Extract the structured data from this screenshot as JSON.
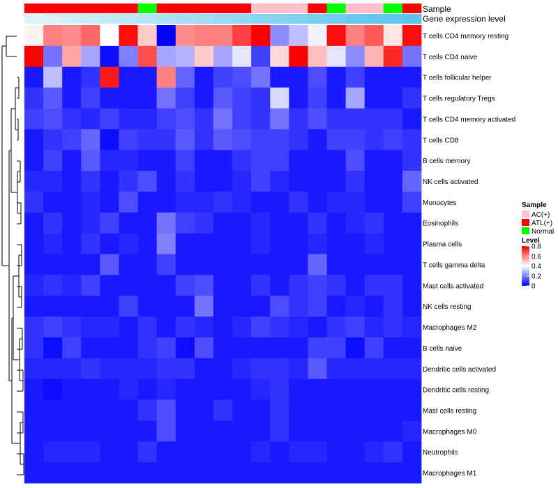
{
  "chart_data": {
    "type": "heatmap",
    "title": "",
    "annotations": [
      {
        "label": "Sample",
        "values": [
          "ATL(+)",
          "ATL(+)",
          "ATL(+)",
          "ATL(+)",
          "ATL(+)",
          "ATL(+)",
          "Normal",
          "ATL(+)",
          "ATL(+)",
          "ATL(+)",
          "ATL(+)",
          "ATL(+)",
          "AC(+)",
          "AC(+)",
          "AC(+)",
          "ATL(+)",
          "Normal",
          "AC(+)",
          "AC(+)",
          "Normal",
          "ATL(+)"
        ]
      },
      {
        "label": "Gene expression level",
        "values": [
          0.05,
          0.1,
          0.15,
          0.2,
          0.25,
          0.3,
          0.35,
          0.4,
          0.45,
          0.5,
          0.55,
          0.6,
          0.65,
          0.7,
          0.75,
          0.8,
          0.85,
          0.9,
          0.93,
          0.96,
          1.0
        ]
      }
    ],
    "rows": [
      "T cells CD4 memory resting",
      "T cells CD4 naive",
      "T cells follicular helper",
      "T cells regulatory  Tregs",
      "T cells CD4 memory activated",
      "T cells CD8",
      "B cells memory",
      "NK cells activated",
      "Monocytes",
      "Eosinophils",
      "Plasma cells",
      "T cells gamma delta",
      "Mast cells activated",
      "NK cells resting",
      "Macrophages M2",
      "B cells naive",
      "Dendritic cells activated",
      "Dendritic cells resting",
      "Mast cells resting",
      "Macrophages M0",
      "Neutrophils",
      "Macrophages M1"
    ],
    "values": [
      [
        0.42,
        0.6,
        0.58,
        0.64,
        0.4,
        0.78,
        0.48,
        0.0,
        0.58,
        0.6,
        0.6,
        0.7,
        0.8,
        0.22,
        0.3,
        0.38,
        0.78,
        0.6,
        0.66,
        0.44,
        0.78
      ],
      [
        0.8,
        0.18,
        0.54,
        0.26,
        0.02,
        0.2,
        0.68,
        0.26,
        0.28,
        0.48,
        0.26,
        0.36,
        0.1,
        0.46,
        0.8,
        0.5,
        0.36,
        0.22,
        0.52,
        0.74,
        0.18
      ],
      [
        0.04,
        0.3,
        0.04,
        0.08,
        0.76,
        0.04,
        0.04,
        0.6,
        0.16,
        0.04,
        0.1,
        0.12,
        0.18,
        0.04,
        0.04,
        0.12,
        0.04,
        0.1,
        0.04,
        0.04,
        0.04
      ],
      [
        0.08,
        0.14,
        0.04,
        0.1,
        0.04,
        0.04,
        0.04,
        0.18,
        0.1,
        0.04,
        0.14,
        0.1,
        0.08,
        0.34,
        0.04,
        0.1,
        0.04,
        0.26,
        0.04,
        0.04,
        0.08
      ],
      [
        0.1,
        0.12,
        0.08,
        0.06,
        0.1,
        0.06,
        0.06,
        0.1,
        0.12,
        0.08,
        0.18,
        0.1,
        0.08,
        0.18,
        0.08,
        0.12,
        0.08,
        0.08,
        0.08,
        0.08,
        0.04
      ],
      [
        0.04,
        0.08,
        0.1,
        0.16,
        0.02,
        0.1,
        0.08,
        0.08,
        0.14,
        0.08,
        0.14,
        0.12,
        0.1,
        0.1,
        0.08,
        0.04,
        0.1,
        0.1,
        0.08,
        0.1,
        0.08
      ],
      [
        0.04,
        0.1,
        0.04,
        0.14,
        0.06,
        0.06,
        0.04,
        0.04,
        0.1,
        0.04,
        0.04,
        0.08,
        0.1,
        0.1,
        0.04,
        0.04,
        0.04,
        0.12,
        0.04,
        0.04,
        0.08
      ],
      [
        0.06,
        0.06,
        0.04,
        0.08,
        0.04,
        0.08,
        0.12,
        0.04,
        0.08,
        0.04,
        0.04,
        0.06,
        0.1,
        0.06,
        0.04,
        0.04,
        0.04,
        0.08,
        0.04,
        0.04,
        0.16
      ],
      [
        0.08,
        0.04,
        0.04,
        0.06,
        0.04,
        0.12,
        0.04,
        0.04,
        0.06,
        0.06,
        0.08,
        0.06,
        0.04,
        0.04,
        0.08,
        0.04,
        0.06,
        0.06,
        0.04,
        0.04,
        0.1
      ],
      [
        0.04,
        0.08,
        0.04,
        0.06,
        0.1,
        0.04,
        0.04,
        0.18,
        0.1,
        0.08,
        0.04,
        0.04,
        0.06,
        0.04,
        0.04,
        0.08,
        0.04,
        0.06,
        0.08,
        0.04,
        0.04
      ],
      [
        0.04,
        0.06,
        0.04,
        0.08,
        0.04,
        0.06,
        0.04,
        0.2,
        0.04,
        0.04,
        0.04,
        0.04,
        0.06,
        0.04,
        0.04,
        0.06,
        0.04,
        0.04,
        0.06,
        0.04,
        0.04
      ],
      [
        0.04,
        0.04,
        0.04,
        0.04,
        0.14,
        0.04,
        0.04,
        0.1,
        0.04,
        0.04,
        0.04,
        0.04,
        0.04,
        0.04,
        0.04,
        0.16,
        0.04,
        0.04,
        0.04,
        0.04,
        0.04
      ],
      [
        0.06,
        0.08,
        0.06,
        0.1,
        0.04,
        0.04,
        0.04,
        0.04,
        0.1,
        0.12,
        0.04,
        0.04,
        0.08,
        0.04,
        0.08,
        0.1,
        0.08,
        0.04,
        0.08,
        0.08,
        0.04
      ],
      [
        0.04,
        0.04,
        0.04,
        0.04,
        0.04,
        0.1,
        0.04,
        0.04,
        0.04,
        0.18,
        0.04,
        0.04,
        0.04,
        0.12,
        0.08,
        0.1,
        0.04,
        0.06,
        0.04,
        0.08,
        0.04
      ],
      [
        0.08,
        0.1,
        0.08,
        0.06,
        0.06,
        0.04,
        0.08,
        0.04,
        0.08,
        0.06,
        0.04,
        0.06,
        0.1,
        0.08,
        0.06,
        0.04,
        0.08,
        0.1,
        0.06,
        0.08,
        0.06
      ],
      [
        0.08,
        0.02,
        0.1,
        0.04,
        0.04,
        0.04,
        0.08,
        0.1,
        0.02,
        0.12,
        0.04,
        0.04,
        0.04,
        0.04,
        0.04,
        0.1,
        0.1,
        0.02,
        0.1,
        0.04,
        0.04
      ],
      [
        0.06,
        0.06,
        0.06,
        0.08,
        0.06,
        0.06,
        0.06,
        0.08,
        0.08,
        0.04,
        0.04,
        0.06,
        0.08,
        0.08,
        0.06,
        0.14,
        0.06,
        0.06,
        0.06,
        0.06,
        0.06
      ],
      [
        0.04,
        0.02,
        0.04,
        0.04,
        0.04,
        0.06,
        0.04,
        0.06,
        0.04,
        0.04,
        0.04,
        0.04,
        0.06,
        0.08,
        0.04,
        0.04,
        0.04,
        0.04,
        0.04,
        0.04,
        0.04
      ],
      [
        0.04,
        0.04,
        0.04,
        0.04,
        0.04,
        0.04,
        0.08,
        0.12,
        0.04,
        0.04,
        0.08,
        0.04,
        0.04,
        0.08,
        0.04,
        0.04,
        0.04,
        0.04,
        0.04,
        0.04,
        0.04
      ],
      [
        0.04,
        0.04,
        0.04,
        0.04,
        0.04,
        0.04,
        0.04,
        0.12,
        0.04,
        0.04,
        0.04,
        0.04,
        0.04,
        0.08,
        0.04,
        0.04,
        0.04,
        0.04,
        0.04,
        0.04,
        0.06
      ],
      [
        0.04,
        0.06,
        0.06,
        0.06,
        0.04,
        0.04,
        0.08,
        0.04,
        0.04,
        0.04,
        0.04,
        0.04,
        0.06,
        0.04,
        0.06,
        0.06,
        0.04,
        0.04,
        0.06,
        0.08,
        0.04
      ],
      [
        0.04,
        0.04,
        0.04,
        0.04,
        0.04,
        0.04,
        0.04,
        0.04,
        0.04,
        0.04,
        0.04,
        0.04,
        0.04,
        0.04,
        0.04,
        0.04,
        0.04,
        0.04,
        0.04,
        0.04,
        0.04
      ]
    ],
    "legend": {
      "sample_title": "Sample",
      "sample_entries": [
        {
          "label": "AC(+)",
          "color": "#ffc0cb"
        },
        {
          "label": "ATL(+)",
          "color": "#ff0000"
        },
        {
          "label": "Normal",
          "color": "#00ff00"
        }
      ],
      "level_title": "Level",
      "level_ticks": [
        "0.8",
        "0.6",
        "0.4",
        "0.2",
        "0"
      ],
      "level_range": [
        0,
        0.8
      ],
      "colors": {
        "low": "#0000ff",
        "mid": "#ffffff",
        "high": "#ff0000"
      }
    },
    "expression_colors": {
      "low": "#e6f6fb",
      "high": "#5bc3ec"
    },
    "dendrogram": "row",
    "legend_position": "right"
  }
}
